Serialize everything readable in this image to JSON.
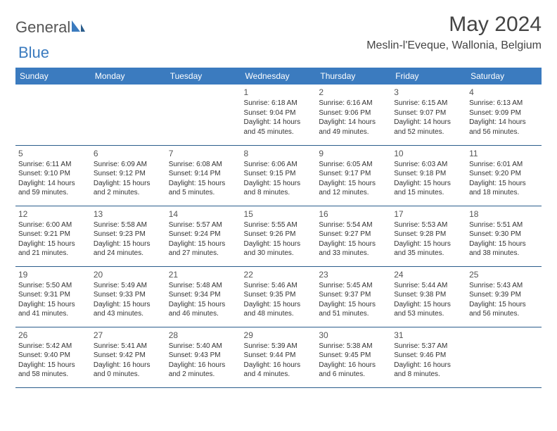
{
  "logo": {
    "text1": "General",
    "text2": "Blue"
  },
  "title": "May 2024",
  "location": "Meslin-l'Eveque, Wallonia, Belgium",
  "colors": {
    "header_bg": "#3b7bbf",
    "header_text": "#ffffff",
    "border": "#2b5d8c",
    "body_text": "#333333",
    "day_num": "#555555",
    "page_bg": "#ffffff"
  },
  "day_headers": [
    "Sunday",
    "Monday",
    "Tuesday",
    "Wednesday",
    "Thursday",
    "Friday",
    "Saturday"
  ],
  "weeks": [
    [
      {
        "n": "",
        "info": ""
      },
      {
        "n": "",
        "info": ""
      },
      {
        "n": "",
        "info": ""
      },
      {
        "n": "1",
        "info": "Sunrise: 6:18 AM\nSunset: 9:04 PM\nDaylight: 14 hours and 45 minutes."
      },
      {
        "n": "2",
        "info": "Sunrise: 6:16 AM\nSunset: 9:06 PM\nDaylight: 14 hours and 49 minutes."
      },
      {
        "n": "3",
        "info": "Sunrise: 6:15 AM\nSunset: 9:07 PM\nDaylight: 14 hours and 52 minutes."
      },
      {
        "n": "4",
        "info": "Sunrise: 6:13 AM\nSunset: 9:09 PM\nDaylight: 14 hours and 56 minutes."
      }
    ],
    [
      {
        "n": "5",
        "info": "Sunrise: 6:11 AM\nSunset: 9:10 PM\nDaylight: 14 hours and 59 minutes."
      },
      {
        "n": "6",
        "info": "Sunrise: 6:09 AM\nSunset: 9:12 PM\nDaylight: 15 hours and 2 minutes."
      },
      {
        "n": "7",
        "info": "Sunrise: 6:08 AM\nSunset: 9:14 PM\nDaylight: 15 hours and 5 minutes."
      },
      {
        "n": "8",
        "info": "Sunrise: 6:06 AM\nSunset: 9:15 PM\nDaylight: 15 hours and 8 minutes."
      },
      {
        "n": "9",
        "info": "Sunrise: 6:05 AM\nSunset: 9:17 PM\nDaylight: 15 hours and 12 minutes."
      },
      {
        "n": "10",
        "info": "Sunrise: 6:03 AM\nSunset: 9:18 PM\nDaylight: 15 hours and 15 minutes."
      },
      {
        "n": "11",
        "info": "Sunrise: 6:01 AM\nSunset: 9:20 PM\nDaylight: 15 hours and 18 minutes."
      }
    ],
    [
      {
        "n": "12",
        "info": "Sunrise: 6:00 AM\nSunset: 9:21 PM\nDaylight: 15 hours and 21 minutes."
      },
      {
        "n": "13",
        "info": "Sunrise: 5:58 AM\nSunset: 9:23 PM\nDaylight: 15 hours and 24 minutes."
      },
      {
        "n": "14",
        "info": "Sunrise: 5:57 AM\nSunset: 9:24 PM\nDaylight: 15 hours and 27 minutes."
      },
      {
        "n": "15",
        "info": "Sunrise: 5:55 AM\nSunset: 9:26 PM\nDaylight: 15 hours and 30 minutes."
      },
      {
        "n": "16",
        "info": "Sunrise: 5:54 AM\nSunset: 9:27 PM\nDaylight: 15 hours and 33 minutes."
      },
      {
        "n": "17",
        "info": "Sunrise: 5:53 AM\nSunset: 9:28 PM\nDaylight: 15 hours and 35 minutes."
      },
      {
        "n": "18",
        "info": "Sunrise: 5:51 AM\nSunset: 9:30 PM\nDaylight: 15 hours and 38 minutes."
      }
    ],
    [
      {
        "n": "19",
        "info": "Sunrise: 5:50 AM\nSunset: 9:31 PM\nDaylight: 15 hours and 41 minutes."
      },
      {
        "n": "20",
        "info": "Sunrise: 5:49 AM\nSunset: 9:33 PM\nDaylight: 15 hours and 43 minutes."
      },
      {
        "n": "21",
        "info": "Sunrise: 5:48 AM\nSunset: 9:34 PM\nDaylight: 15 hours and 46 minutes."
      },
      {
        "n": "22",
        "info": "Sunrise: 5:46 AM\nSunset: 9:35 PM\nDaylight: 15 hours and 48 minutes."
      },
      {
        "n": "23",
        "info": "Sunrise: 5:45 AM\nSunset: 9:37 PM\nDaylight: 15 hours and 51 minutes."
      },
      {
        "n": "24",
        "info": "Sunrise: 5:44 AM\nSunset: 9:38 PM\nDaylight: 15 hours and 53 minutes."
      },
      {
        "n": "25",
        "info": "Sunrise: 5:43 AM\nSunset: 9:39 PM\nDaylight: 15 hours and 56 minutes."
      }
    ],
    [
      {
        "n": "26",
        "info": "Sunrise: 5:42 AM\nSunset: 9:40 PM\nDaylight: 15 hours and 58 minutes."
      },
      {
        "n": "27",
        "info": "Sunrise: 5:41 AM\nSunset: 9:42 PM\nDaylight: 16 hours and 0 minutes."
      },
      {
        "n": "28",
        "info": "Sunrise: 5:40 AM\nSunset: 9:43 PM\nDaylight: 16 hours and 2 minutes."
      },
      {
        "n": "29",
        "info": "Sunrise: 5:39 AM\nSunset: 9:44 PM\nDaylight: 16 hours and 4 minutes."
      },
      {
        "n": "30",
        "info": "Sunrise: 5:38 AM\nSunset: 9:45 PM\nDaylight: 16 hours and 6 minutes."
      },
      {
        "n": "31",
        "info": "Sunrise: 5:37 AM\nSunset: 9:46 PM\nDaylight: 16 hours and 8 minutes."
      },
      {
        "n": "",
        "info": ""
      }
    ]
  ]
}
